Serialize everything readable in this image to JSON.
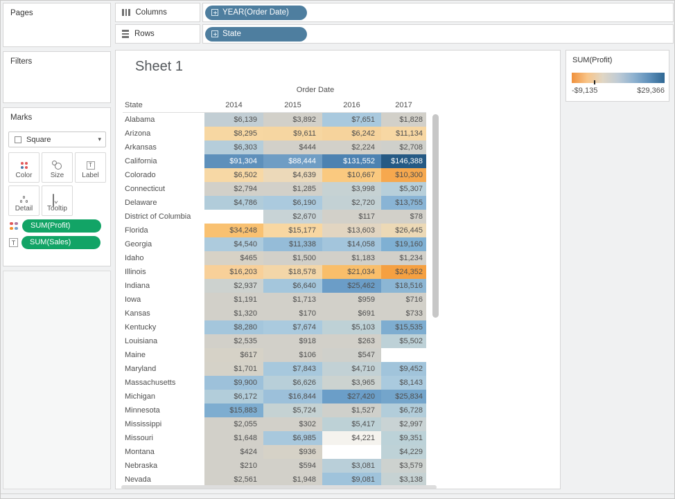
{
  "shelves": {
    "columns": {
      "label": "Columns",
      "pill": "YEAR(Order Date)"
    },
    "rows": {
      "label": "Rows",
      "pill": "State"
    }
  },
  "sidebar": {
    "pages_label": "Pages",
    "filters_label": "Filters",
    "marks": {
      "label": "Marks",
      "mark_type": "Square",
      "buttons": [
        {
          "label": "Color"
        },
        {
          "label": "Size"
        },
        {
          "label": "Label"
        },
        {
          "label": "Detail"
        },
        {
          "label": "Tooltip"
        }
      ],
      "pills": [
        {
          "label": "SUM(Profit)"
        },
        {
          "label": "SUM(Sales)"
        }
      ]
    }
  },
  "sheet": {
    "title": "Sheet 1"
  },
  "legend": {
    "title": "SUM(Profit)",
    "min": "-$9,135",
    "max": "$29,366",
    "tick_pos_pct": 24,
    "gradient": [
      "#f0913c",
      "#f8c488",
      "#e0d6c4",
      "#bfcbd5",
      "#8fb2d0",
      "#5f90ba",
      "#2f6793"
    ]
  },
  "chart_data": {
    "type": "heatmap",
    "title": "Sheet 1",
    "column_header": "Order Date",
    "row_header": "State",
    "columns": [
      "2014",
      "2015",
      "2016",
      "2017"
    ],
    "color_measure": "SUM(Profit)",
    "label_measure": "SUM(Sales)",
    "color_range": [
      "-$9,135",
      "$29,366"
    ],
    "rows": [
      {
        "state": "Alabama",
        "cells": [
          {
            "v": "$6,139",
            "bg": "#c2ced4"
          },
          {
            "v": "$3,892",
            "bg": "#d2d0c9"
          },
          {
            "v": "$7,651",
            "bg": "#a9c9de"
          },
          {
            "v": "$1,828",
            "bg": "#d2d0c9"
          }
        ]
      },
      {
        "state": "Arizona",
        "cells": [
          {
            "v": "$8,295",
            "bg": "#f7d7a2"
          },
          {
            "v": "$9,611",
            "bg": "#f6d6a1"
          },
          {
            "v": "$6,242",
            "bg": "#f6d39c"
          },
          {
            "v": "$11,134",
            "bg": "#f7d7a3"
          }
        ]
      },
      {
        "state": "Arkansas",
        "cells": [
          {
            "v": "$6,303",
            "bg": "#b5cdda"
          },
          {
            "v": "$444",
            "bg": "#d2d0c9"
          },
          {
            "v": "$2,224",
            "bg": "#d2d0c9"
          },
          {
            "v": "$2,708",
            "bg": "#cfd0cb"
          }
        ]
      },
      {
        "state": "California",
        "cells": [
          {
            "v": "$91,304",
            "bg": "#5e90bb",
            "fg": "#ffffff"
          },
          {
            "v": "$88,444",
            "bg": "#6f9dc4",
            "fg": "#ffffff"
          },
          {
            "v": "$131,552",
            "bg": "#4d82b1",
            "fg": "#ffffff"
          },
          {
            "v": "$146,388",
            "bg": "#265a84",
            "fg": "#ffffff"
          }
        ]
      },
      {
        "state": "Colorado",
        "cells": [
          {
            "v": "$6,502",
            "bg": "#f7d8a5"
          },
          {
            "v": "$4,639",
            "bg": "#ecd9b9"
          },
          {
            "v": "$10,667",
            "bg": "#fac97f"
          },
          {
            "v": "$10,300",
            "bg": "#f6a84e"
          }
        ]
      },
      {
        "state": "Connecticut",
        "cells": [
          {
            "v": "$2,794",
            "bg": "#d2d0c9"
          },
          {
            "v": "$1,285",
            "bg": "#d2d0c9"
          },
          {
            "v": "$3,998",
            "bg": "#c6d2d3"
          },
          {
            "v": "$5,307",
            "bg": "#b7cfda"
          }
        ]
      },
      {
        "state": "Delaware",
        "cells": [
          {
            "v": "$4,786",
            "bg": "#b1ccda"
          },
          {
            "v": "$6,190",
            "bg": "#abcade"
          },
          {
            "v": "$2,720",
            "bg": "#c3d1d4"
          },
          {
            "v": "$13,755",
            "bg": "#89b4d5"
          }
        ]
      },
      {
        "state": "District of Columbia",
        "cells": [
          {
            "v": "",
            "bg": "#ffffff"
          },
          {
            "v": "$2,670",
            "bg": "#c8d3d6"
          },
          {
            "v": "$117",
            "bg": "#d2d0c9"
          },
          {
            "v": "$78",
            "bg": "#d2d0c9"
          }
        ]
      },
      {
        "state": "Florida",
        "cells": [
          {
            "v": "$34,248",
            "bg": "#f9c171"
          },
          {
            "v": "$15,177",
            "bg": "#f8d7a2"
          },
          {
            "v": "$13,603",
            "bg": "#e2d5c1"
          },
          {
            "v": "$26,445",
            "bg": "#ecd9b6"
          }
        ]
      },
      {
        "state": "Georgia",
        "cells": [
          {
            "v": "$4,540",
            "bg": "#adcbdd"
          },
          {
            "v": "$11,338",
            "bg": "#95bcd8"
          },
          {
            "v": "$14,058",
            "bg": "#a3c5dc"
          },
          {
            "v": "$19,160",
            "bg": "#7fb0d3"
          }
        ]
      },
      {
        "state": "Idaho",
        "cells": [
          {
            "v": "$465",
            "bg": "#d7d2c6"
          },
          {
            "v": "$1,500",
            "bg": "#d2d0c9"
          },
          {
            "v": "$1,183",
            "bg": "#d2d0c9"
          },
          {
            "v": "$1,234",
            "bg": "#d2d0c9"
          }
        ]
      },
      {
        "state": "Illinois",
        "cells": [
          {
            "v": "$16,203",
            "bg": "#f8d099"
          },
          {
            "v": "$18,578",
            "bg": "#f3d6a8"
          },
          {
            "v": "$21,034",
            "bg": "#f9be6a"
          },
          {
            "v": "$24,352",
            "bg": "#f5a041"
          }
        ]
      },
      {
        "state": "Indiana",
        "cells": [
          {
            "v": "$2,937",
            "bg": "#cdd2cf"
          },
          {
            "v": "$6,640",
            "bg": "#a4c6dc"
          },
          {
            "v": "$25,462",
            "bg": "#6b9dc7"
          },
          {
            "v": "$18,516",
            "bg": "#8cb6d4"
          }
        ]
      },
      {
        "state": "Iowa",
        "cells": [
          {
            "v": "$1,191",
            "bg": "#d2d0c9"
          },
          {
            "v": "$1,713",
            "bg": "#d2d0c9"
          },
          {
            "v": "$959",
            "bg": "#d2d0c9"
          },
          {
            "v": "$716",
            "bg": "#d2d0c9"
          }
        ]
      },
      {
        "state": "Kansas",
        "cells": [
          {
            "v": "$1,320",
            "bg": "#d2d0c9"
          },
          {
            "v": "$170",
            "bg": "#d2d0c9"
          },
          {
            "v": "$691",
            "bg": "#d2d0c9"
          },
          {
            "v": "$733",
            "bg": "#d2d0c9"
          }
        ]
      },
      {
        "state": "Kentucky",
        "cells": [
          {
            "v": "$8,280",
            "bg": "#a4c6dc"
          },
          {
            "v": "$7,674",
            "bg": "#aacade"
          },
          {
            "v": "$5,103",
            "bg": "#bed1d6"
          },
          {
            "v": "$15,535",
            "bg": "#7eadd0"
          }
        ]
      },
      {
        "state": "Louisiana",
        "cells": [
          {
            "v": "$2,535",
            "bg": "#d2d0c9"
          },
          {
            "v": "$918",
            "bg": "#d2d0c9"
          },
          {
            "v": "$263",
            "bg": "#d2d0c9"
          },
          {
            "v": "$5,502",
            "bg": "#bdd1d7"
          }
        ]
      },
      {
        "state": "Maine",
        "cells": [
          {
            "v": "$617",
            "bg": "#d6d2c7"
          },
          {
            "v": "$106",
            "bg": "#d2d0c9"
          },
          {
            "v": "$547",
            "bg": "#cfd0cb"
          },
          {
            "v": "",
            "bg": "#ffffff"
          }
        ]
      },
      {
        "state": "Maryland",
        "cells": [
          {
            "v": "$1,701",
            "bg": "#d5d2c8"
          },
          {
            "v": "$7,843",
            "bg": "#a7c8dd"
          },
          {
            "v": "$4,710",
            "bg": "#c2d1d5"
          },
          {
            "v": "$9,452",
            "bg": "#a1c4db"
          }
        ]
      },
      {
        "state": "Massachusetts",
        "cells": [
          {
            "v": "$9,900",
            "bg": "#9dc1da"
          },
          {
            "v": "$6,626",
            "bg": "#b8cfd9"
          },
          {
            "v": "$3,965",
            "bg": "#ccd3d0"
          },
          {
            "v": "$8,143",
            "bg": "#aacade"
          }
        ]
      },
      {
        "state": "Michigan",
        "cells": [
          {
            "v": "$6,172",
            "bg": "#b2cdda"
          },
          {
            "v": "$16,844",
            "bg": "#9cc0da"
          },
          {
            "v": "$27,420",
            "bg": "#6b9ec8"
          },
          {
            "v": "$25,834",
            "bg": "#74a5cb"
          }
        ]
      },
      {
        "state": "Minnesota",
        "cells": [
          {
            "v": "$15,883",
            "bg": "#7eadd0"
          },
          {
            "v": "$5,724",
            "bg": "#c5d2d3"
          },
          {
            "v": "$1,527",
            "bg": "#cfd0cb"
          },
          {
            "v": "$6,728",
            "bg": "#b2cdda"
          }
        ]
      },
      {
        "state": "Mississippi",
        "cells": [
          {
            "v": "$2,055",
            "bg": "#d2d0c9"
          },
          {
            "v": "$302",
            "bg": "#d2d0c9"
          },
          {
            "v": "$5,417",
            "bg": "#bdd1d6"
          },
          {
            "v": "$2,997",
            "bg": "#c9d3d4"
          }
        ]
      },
      {
        "state": "Missouri",
        "cells": [
          {
            "v": "$1,648",
            "bg": "#d2d0c9"
          },
          {
            "v": "$6,985",
            "bg": "#a8c8dd"
          },
          {
            "v": "$4,221",
            "bg": "#f5f3ee"
          },
          {
            "v": "$9,351",
            "bg": "#bcd2d8"
          }
        ]
      },
      {
        "state": "Montana",
        "cells": [
          {
            "v": "$424",
            "bg": "#d2d0c9"
          },
          {
            "v": "$936",
            "bg": "#d6d2c7"
          },
          {
            "v": "",
            "bg": "#ffffff"
          },
          {
            "v": "$4,229",
            "bg": "#bed2d7"
          }
        ]
      },
      {
        "state": "Nebraska",
        "cells": [
          {
            "v": "$210",
            "bg": "#d2d0c9"
          },
          {
            "v": "$594",
            "bg": "#d2d0c9"
          },
          {
            "v": "$3,081",
            "bg": "#b9cfd9"
          },
          {
            "v": "$3,579",
            "bg": "#cdd2cf"
          }
        ]
      },
      {
        "state": "Nevada",
        "cells": [
          {
            "v": "$2,561",
            "bg": "#d2d0c9"
          },
          {
            "v": "$1,948",
            "bg": "#d2d0c9"
          },
          {
            "v": "$9,081",
            "bg": "#9fc3db"
          },
          {
            "v": "$3,138",
            "bg": "#c6d2d3"
          }
        ]
      }
    ]
  }
}
